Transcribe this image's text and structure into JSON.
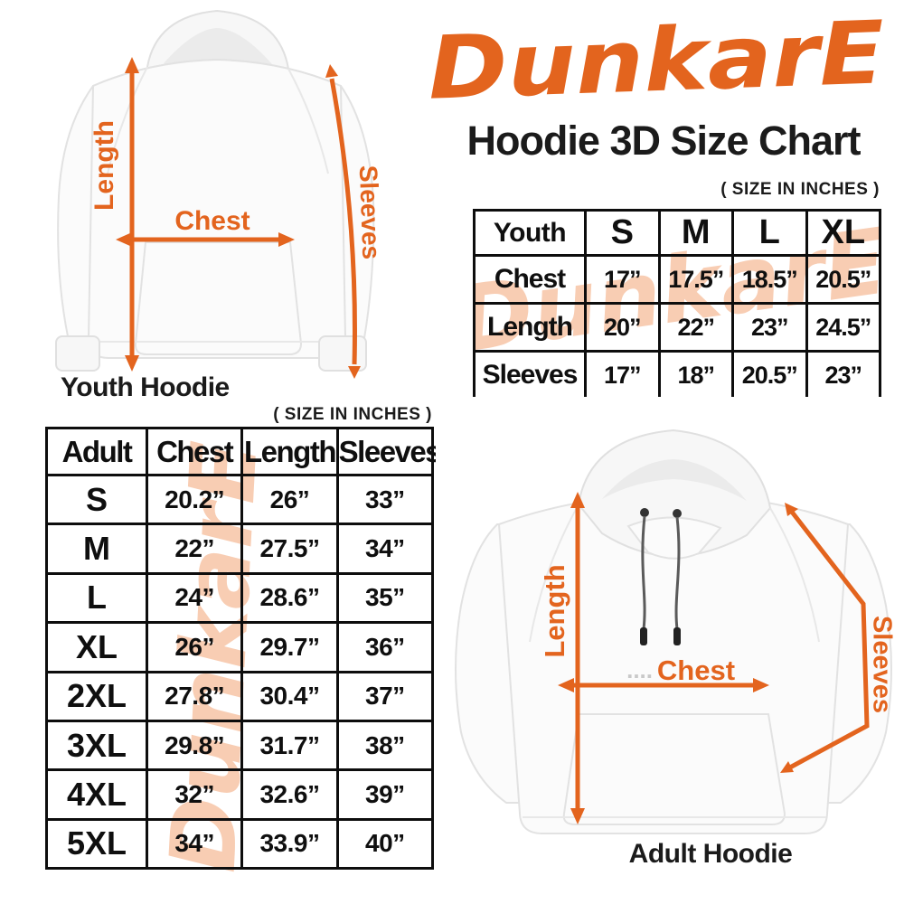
{
  "brand": {
    "logo_text": "DunkarE",
    "color": "#E3641E"
  },
  "header": {
    "title": "Hoodie 3D Size Chart"
  },
  "notes": {
    "size_note_youth": "( SIZE IN INCHES )",
    "size_note_adult": "( SIZE IN INCHES )"
  },
  "watermark": {
    "text": "DunkarE",
    "color": "#F8CDB3"
  },
  "youth_diagram": {
    "caption": "Youth Hoodie",
    "length_label": "Length",
    "chest_label": "Chest",
    "sleeves_label": "Sleeves"
  },
  "adult_diagram": {
    "caption": "Adult Hoodie",
    "length_label": "Length",
    "chest_label": "Chest",
    "sleeves_label": "Sleeves",
    "chest_leader_dots": "...."
  },
  "youth_table": {
    "columns": [
      "Youth",
      "S",
      "M",
      "L",
      "XL"
    ],
    "rows": [
      {
        "label": "Chest",
        "values": [
          "17”",
          "17.5”",
          "18.5”",
          "20.5”"
        ]
      },
      {
        "label": "Length",
        "values": [
          "20”",
          "22”",
          "23”",
          "24.5”"
        ]
      },
      {
        "label": "Sleeves",
        "values": [
          "17”",
          "18”",
          "20.5”",
          "23”"
        ]
      }
    ]
  },
  "adult_table": {
    "columns": [
      "Adult",
      "Chest",
      "Length",
      "Sleeves"
    ],
    "rows": [
      {
        "label": "S",
        "values": [
          "20.2”",
          "26”",
          "33”"
        ]
      },
      {
        "label": "M",
        "values": [
          "22”",
          "27.5”",
          "34”"
        ]
      },
      {
        "label": "L",
        "values": [
          "24”",
          "28.6”",
          "35”"
        ]
      },
      {
        "label": "XL",
        "values": [
          "26”",
          "29.7”",
          "36”"
        ]
      },
      {
        "label": "2XL",
        "values": [
          "27.8”",
          "30.4”",
          "37”"
        ]
      },
      {
        "label": "3XL",
        "values": [
          "29.8”",
          "31.7”",
          "38”"
        ]
      },
      {
        "label": "4XL",
        "values": [
          "32”",
          "32.6”",
          "39”"
        ]
      },
      {
        "label": "5XL",
        "values": [
          "34”",
          "33.9”",
          "40”"
        ]
      }
    ]
  },
  "colors": {
    "accent_orange": "#E3641E",
    "watermark_peach": "#F8CDB3",
    "table_border": "#0d0d0d",
    "text_black": "#1b1b1b"
  },
  "chart_data": [
    {
      "type": "table",
      "title": "Youth Hoodie Size Chart",
      "unit": "inches",
      "columns": [
        "Youth",
        "S",
        "M",
        "L",
        "XL"
      ],
      "rows": [
        {
          "measure": "Chest",
          "values": [
            17,
            17.5,
            18.5,
            20.5
          ]
        },
        {
          "measure": "Length",
          "values": [
            20,
            22,
            23,
            24.5
          ]
        },
        {
          "measure": "Sleeves",
          "values": [
            17,
            18,
            20.5,
            23
          ]
        }
      ]
    },
    {
      "type": "table",
      "title": "Adult Hoodie Size Chart",
      "unit": "inches",
      "columns": [
        "Adult",
        "Chest",
        "Length",
        "Sleeves"
      ],
      "rows": [
        {
          "size": "S",
          "chest": 20.2,
          "length": 26,
          "sleeves": 33
        },
        {
          "size": "M",
          "chest": 22,
          "length": 27.5,
          "sleeves": 34
        },
        {
          "size": "L",
          "chest": 24,
          "length": 28.6,
          "sleeves": 35
        },
        {
          "size": "XL",
          "chest": 26,
          "length": 29.7,
          "sleeves": 36
        },
        {
          "size": "2XL",
          "chest": 27.8,
          "length": 30.4,
          "sleeves": 37
        },
        {
          "size": "3XL",
          "chest": 29.8,
          "length": 31.7,
          "sleeves": 38
        },
        {
          "size": "4XL",
          "chest": 32,
          "length": 32.6,
          "sleeves": 39
        },
        {
          "size": "5XL",
          "chest": 34,
          "length": 33.9,
          "sleeves": 40
        }
      ]
    }
  ]
}
